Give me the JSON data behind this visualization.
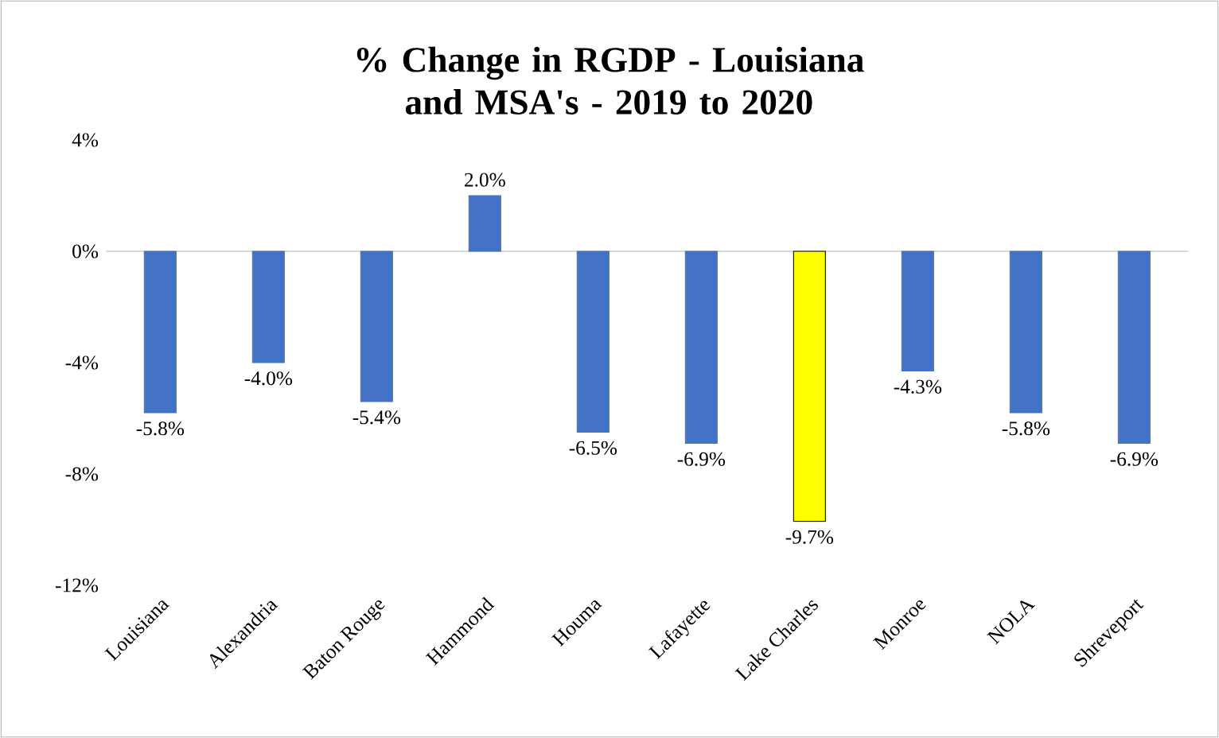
{
  "chart_data": {
    "type": "bar",
    "title": "% Change in RGDP - Louisiana and MSA's - 2019 to 2020",
    "categories": [
      "Louisiana",
      "Alexandria",
      "Baton Rouge",
      "Hammond",
      "Houma",
      "Lafayette",
      "Lake Charles",
      "Monroe",
      "NOLA",
      "Shreveport"
    ],
    "values": [
      -5.8,
      -4.0,
      -5.4,
      2.0,
      -6.5,
      -6.9,
      -9.7,
      -4.3,
      -5.8,
      -6.9
    ],
    "colors": [
      "#4472c4",
      "#4472c4",
      "#4472c4",
      "#4472c4",
      "#4472c4",
      "#4472c4",
      "#ffff00",
      "#4472c4",
      "#4472c4",
      "#4472c4"
    ],
    "value_labels": [
      "-5.8%",
      "-4.0%",
      "-5.4%",
      "2.0%",
      "-6.5%",
      "-6.9%",
      "-9.7%",
      "-4.3%",
      "-5.8%",
      "-6.9%"
    ],
    "ylim": [
      -12,
      4
    ],
    "yticks": [
      {
        "value": -12,
        "label": "-12%"
      },
      {
        "value": -8,
        "label": "-8%"
      },
      {
        "value": -4,
        "label": "-4%"
      },
      {
        "value": 0,
        "label": "0%"
      },
      {
        "value": 4,
        "label": "4%"
      }
    ]
  }
}
